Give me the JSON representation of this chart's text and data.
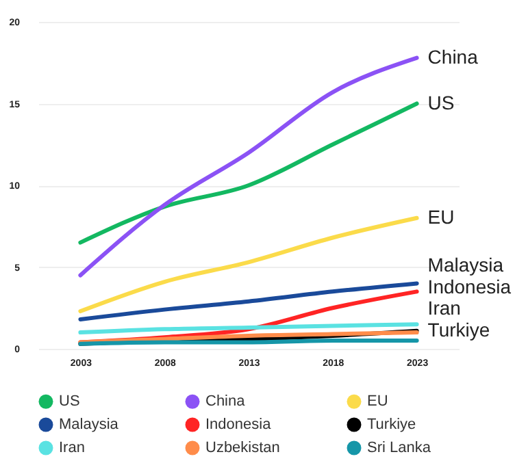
{
  "chart_data": {
    "type": "line",
    "x": [
      2003,
      2008,
      2013,
      2018,
      2023
    ],
    "xlim": [
      2000.5,
      2025.5
    ],
    "xticks": [
      2003,
      2008,
      2013,
      2018,
      2023
    ],
    "ylim": [
      0,
      20
    ],
    "yticks": [
      0,
      5,
      10,
      15,
      20
    ],
    "grid": "y",
    "legend": "bottom",
    "marker": "none",
    "line_style": "solid",
    "series": [
      {
        "name": "US",
        "color": "#13b861",
        "values": [
          6.5,
          8.7,
          10,
          12.5,
          15
        ]
      },
      {
        "name": "China",
        "color": "#8b52f5",
        "values": [
          4.5,
          8.8,
          12,
          15.7,
          17.8
        ]
      },
      {
        "name": "EU",
        "color": "#fbdb4a",
        "values": [
          2.3,
          4.1,
          5.3,
          6.8,
          8
        ]
      },
      {
        "name": "Malaysia",
        "color": "#1a4a9a",
        "values": [
          1.8,
          2.4,
          2.9,
          3.5,
          4
        ]
      },
      {
        "name": "Indonesia",
        "color": "#ff2424",
        "values": [
          0.4,
          0.7,
          1.2,
          2.5,
          3.5
        ]
      },
      {
        "name": "Turkiye",
        "color": "#000000",
        "values": [
          0.3,
          0.5,
          0.6,
          0.8,
          1.1
        ]
      },
      {
        "name": "Iran",
        "color": "#5ae2e2",
        "values": [
          1,
          1.2,
          1.3,
          1.4,
          1.5
        ]
      },
      {
        "name": "Uzbekistan",
        "color": "#ff8c4a",
        "values": [
          0.4,
          0.6,
          0.8,
          0.9,
          1
        ]
      },
      {
        "name": "Sri Lanka",
        "color": "#1596a8",
        "values": [
          0.3,
          0.4,
          0.4,
          0.5,
          0.5
        ]
      }
    ],
    "annotations": [
      "China",
      "US",
      "EU",
      "Malaysia",
      "Indonesia",
      "Iran",
      "Turkiye"
    ]
  }
}
